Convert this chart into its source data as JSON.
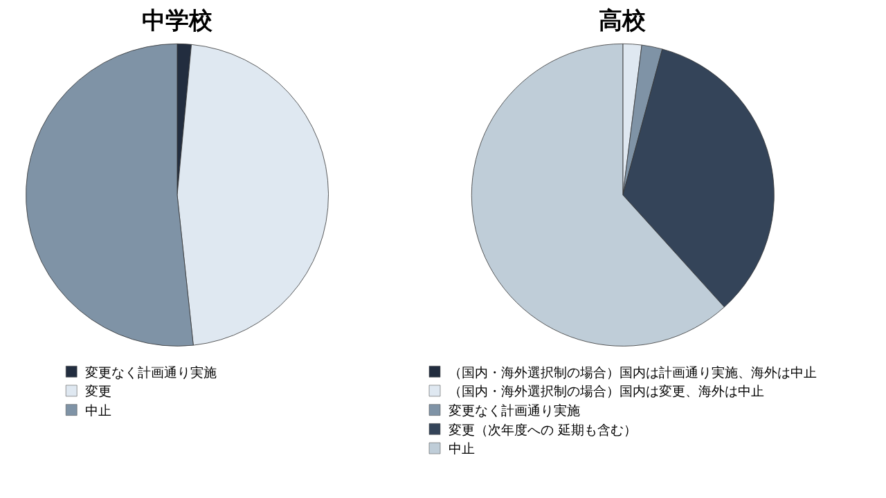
{
  "chart_data": [
    {
      "type": "pie",
      "title": "中学校",
      "categories": [
        "変更なく計画通り実施",
        "変更",
        "中止"
      ],
      "values": [
        1.5,
        46.8,
        51.7
      ],
      "colors": [
        "#222d3f",
        "#dfe8f1",
        "#7f93a6"
      ],
      "legend": "bottom"
    },
    {
      "type": "pie",
      "title": "高校",
      "categories": [
        "（国内・海外選択制の場合）国内は計画通り実施、海外は中止",
        "（国内・海外選択制の場合）国内は変更、海外は中止",
        "変更なく計画通り実施",
        "変更（次年度への 延期も含む）",
        "中止"
      ],
      "values": [
        0,
        2.0,
        2.2,
        34.1,
        61.7
      ],
      "colors": [
        "#222d3f",
        "#dfe8f1",
        "#7f93a6",
        "#344459",
        "#bfcdd8"
      ],
      "legend": "bottom"
    }
  ]
}
